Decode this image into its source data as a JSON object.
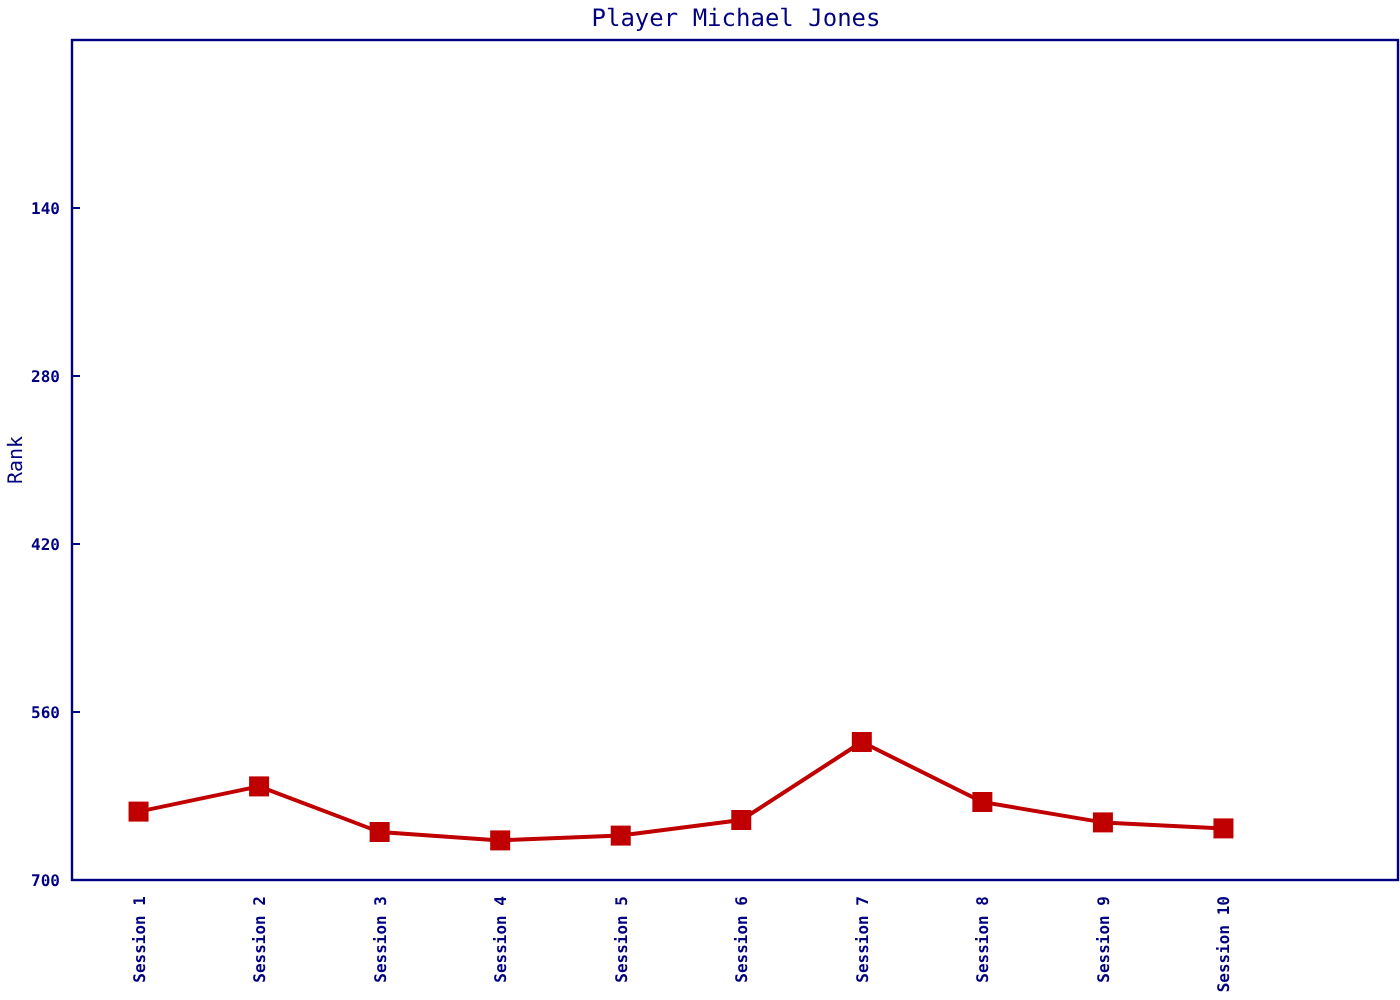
{
  "chart_data": {
    "type": "line",
    "title": "Player Michael Jones",
    "ylabel": "Rank",
    "categories": [
      "Session 1",
      "Session 2",
      "Session 3",
      "Session 4",
      "Session 5",
      "Session 6",
      "Session 7",
      "Session 8",
      "Session 9",
      "Session 10"
    ],
    "series": [
      {
        "color": "#c00000",
        "values": [
          643,
          622,
          660,
          667,
          663,
          650,
          585,
          635,
          652,
          657
        ]
      }
    ],
    "ylim": [
      700,
      0
    ],
    "yticks": [
      140,
      280,
      420,
      560,
      700
    ],
    "grid": false,
    "marker": "square",
    "line_style": "solid"
  }
}
